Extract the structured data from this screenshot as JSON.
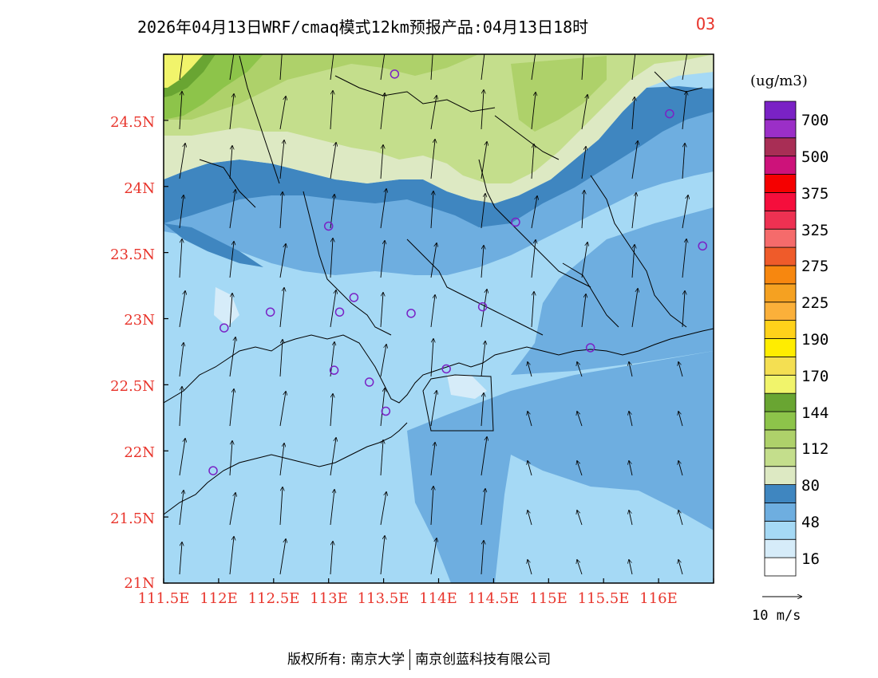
{
  "title": {
    "main": "2026年04月13日WRF/cmaq模式12km预报产品:04月13日18时",
    "species": "O3"
  },
  "colorbar": {
    "unit": "(ug/m3)",
    "labels": [
      "16",
      "48",
      "80",
      "112",
      "144",
      "170",
      "190",
      "225",
      "275",
      "325",
      "375",
      "500",
      "700"
    ],
    "colors": [
      "#ffffff",
      "#d6ecf9",
      "#a5d9f5",
      "#6eaee0",
      "#3f86c0",
      "#dde9c3",
      "#c4de8c",
      "#aed16a",
      "#8dc44a",
      "#69a532",
      "#f1f46b",
      "#f4df52",
      "#ffed00",
      "#ffd21a",
      "#fbb03a",
      "#f5a121",
      "#f7870f",
      "#ef5b2a",
      "#f56b6b",
      "#ee3152",
      "#f50e3c",
      "#f50000",
      "#cd127a",
      "#a82e55",
      "#9b2fc7",
      "#7a22c5"
    ]
  },
  "axes": {
    "x_ticks": [
      "111.5E",
      "112E",
      "112.5E",
      "113E",
      "113.5E",
      "114E",
      "114.5E",
      "115E",
      "115.5E",
      "116E"
    ],
    "y_ticks": [
      "24.5N",
      "24N",
      "23.5N",
      "23N",
      "22.5N",
      "22N",
      "21.5N",
      "21N"
    ],
    "lon_range": [
      111.5,
      116.5
    ],
    "lat_range": [
      21,
      25
    ]
  },
  "vector_reference": "10  m/s",
  "stations": [
    {
      "lon": 113.6,
      "lat": 24.85
    },
    {
      "lon": 116.1,
      "lat": 24.55
    },
    {
      "lon": 114.7,
      "lat": 23.73
    },
    {
      "lon": 113.0,
      "lat": 23.7
    },
    {
      "lon": 116.4,
      "lat": 23.55
    },
    {
      "lon": 113.23,
      "lat": 23.16
    },
    {
      "lon": 112.47,
      "lat": 23.05
    },
    {
      "lon": 113.1,
      "lat": 23.05
    },
    {
      "lon": 113.75,
      "lat": 23.04
    },
    {
      "lon": 114.4,
      "lat": 23.09
    },
    {
      "lon": 112.05,
      "lat": 22.93
    },
    {
      "lon": 115.38,
      "lat": 22.78
    },
    {
      "lon": 113.05,
      "lat": 22.61
    },
    {
      "lon": 114.07,
      "lat": 22.62
    },
    {
      "lon": 113.37,
      "lat": 22.52
    },
    {
      "lon": 113.52,
      "lat": 22.3
    },
    {
      "lon": 111.95,
      "lat": 21.85
    }
  ],
  "footer": {
    "left": "版权所有: 南京大学",
    "right": "南京创蓝科技有限公司"
  }
}
